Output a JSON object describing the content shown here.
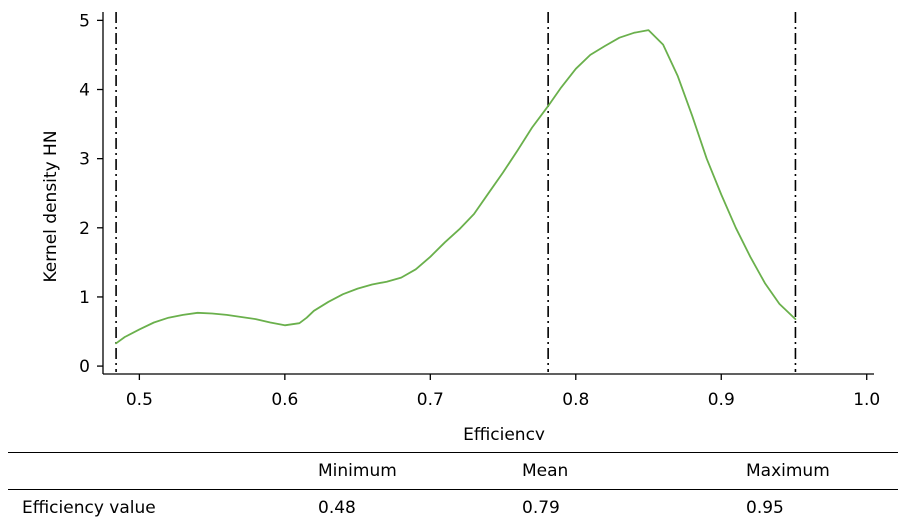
{
  "chart_data": {
    "type": "line",
    "xlabel": "Efficiency",
    "ylabel": "Kernel density HN",
    "xlim": [
      0.475,
      1.005
    ],
    "ylim": [
      -0.1,
      5.15
    ],
    "xticks": [
      0.5,
      0.6,
      0.7,
      0.8,
      0.9,
      1.0
    ],
    "xtick_labels": [
      "0.5",
      "0.6",
      "0.7",
      "0.8",
      "0.9",
      "1.0"
    ],
    "yticks": [
      0,
      1,
      2,
      3,
      4,
      5
    ],
    "ytick_labels": [
      "0",
      "1",
      "2",
      "3",
      "4",
      "5"
    ],
    "grid": false,
    "line_color": "#6ab04c",
    "reference_line_color": "#000000",
    "reference_lines": [
      {
        "x": 0.484
      },
      {
        "x": 0.781
      },
      {
        "x": 0.951
      }
    ],
    "series": [
      {
        "x": [
          0.484,
          0.49,
          0.5,
          0.51,
          0.52,
          0.53,
          0.54,
          0.55,
          0.56,
          0.57,
          0.58,
          0.59,
          0.6,
          0.61,
          0.615,
          0.62,
          0.63,
          0.64,
          0.65,
          0.66,
          0.67,
          0.68,
          0.69,
          0.7,
          0.71,
          0.72,
          0.73,
          0.74,
          0.75,
          0.76,
          0.77,
          0.781,
          0.79,
          0.8,
          0.81,
          0.82,
          0.83,
          0.84,
          0.85,
          0.86,
          0.87,
          0.88,
          0.89,
          0.9,
          0.91,
          0.92,
          0.93,
          0.94,
          0.951
        ],
        "y": [
          0.33,
          0.42,
          0.53,
          0.63,
          0.7,
          0.74,
          0.77,
          0.76,
          0.74,
          0.71,
          0.68,
          0.63,
          0.59,
          0.62,
          0.7,
          0.8,
          0.93,
          1.04,
          1.12,
          1.18,
          1.22,
          1.28,
          1.4,
          1.58,
          1.79,
          1.98,
          2.2,
          2.5,
          2.8,
          3.12,
          3.45,
          3.76,
          4.03,
          4.3,
          4.5,
          4.63,
          4.75,
          4.82,
          4.86,
          4.65,
          4.2,
          3.62,
          3.0,
          2.48,
          2.0,
          1.58,
          1.2,
          0.9,
          0.68
        ]
      }
    ]
  },
  "table": {
    "headers": [
      "",
      "Minimum",
      "Mean",
      "Maximum"
    ],
    "rows": [
      [
        "Efficiency value",
        "0.48",
        "0.79",
        "0.95"
      ]
    ]
  }
}
